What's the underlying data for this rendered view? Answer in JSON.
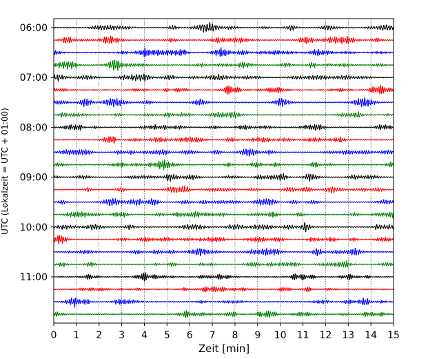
{
  "chart_data": {
    "type": "line",
    "title": "",
    "xlabel": "Zeit  [min]",
    "ylabel": "UTC (Lokalzeit = UTC + 01:00)",
    "xlim": [
      0,
      15
    ],
    "x_ticks": [
      "0",
      "1",
      "2",
      "3",
      "4",
      "5",
      "6",
      "7",
      "8",
      "9",
      "10",
      "11",
      "12",
      "13",
      "14",
      "15"
    ],
    "y_ticks": [
      {
        "label": "06:00",
        "trace": 0
      },
      {
        "label": "07:00",
        "trace": 4
      },
      {
        "label": "08:00",
        "trace": 8
      },
      {
        "label": "09:00",
        "trace": 12
      },
      {
        "label": "10:00",
        "trace": 16
      },
      {
        "label": "11:00",
        "trace": 20
      }
    ],
    "grid": "vertical dotted at each minute",
    "trace_interval_minutes": 15,
    "trace_colors": [
      "#000000",
      "#ff0000",
      "#0000ff",
      "#008000"
    ],
    "traces": [
      {
        "start": "06:00",
        "color_index": 0
      },
      {
        "start": "06:15",
        "color_index": 1
      },
      {
        "start": "06:30",
        "color_index": 2
      },
      {
        "start": "06:45",
        "color_index": 3
      },
      {
        "start": "07:00",
        "color_index": 0
      },
      {
        "start": "07:15",
        "color_index": 1
      },
      {
        "start": "07:30",
        "color_index": 2
      },
      {
        "start": "07:45",
        "color_index": 3
      },
      {
        "start": "08:00",
        "color_index": 0
      },
      {
        "start": "08:15",
        "color_index": 1
      },
      {
        "start": "08:30",
        "color_index": 2
      },
      {
        "start": "08:45",
        "color_index": 3
      },
      {
        "start": "09:00",
        "color_index": 0
      },
      {
        "start": "09:15",
        "color_index": 1
      },
      {
        "start": "09:30",
        "color_index": 2
      },
      {
        "start": "09:45",
        "color_index": 3
      },
      {
        "start": "10:00",
        "color_index": 0
      },
      {
        "start": "10:15",
        "color_index": 1
      },
      {
        "start": "10:30",
        "color_index": 2
      },
      {
        "start": "10:45",
        "color_index": 3
      },
      {
        "start": "11:00",
        "color_index": 0
      },
      {
        "start": "11:15",
        "color_index": 1
      },
      {
        "start": "11:30",
        "color_index": 2
      },
      {
        "start": "11:45",
        "color_index": 3
      }
    ]
  }
}
